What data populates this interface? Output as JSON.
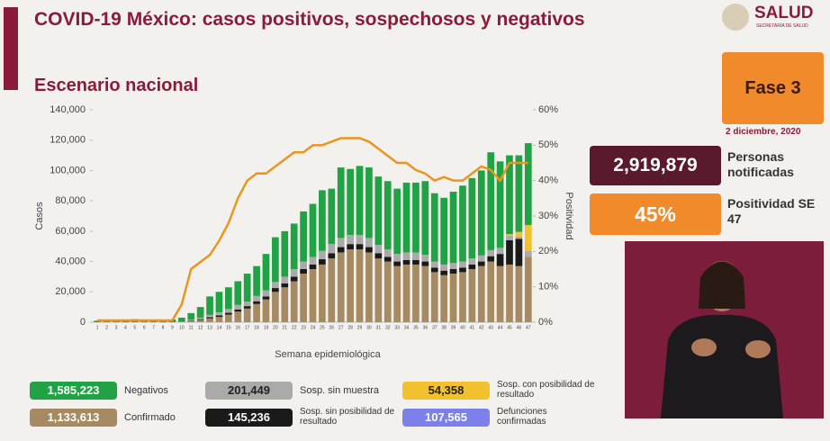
{
  "header": {
    "title": "COVID-19 México: casos positivos, sospechosos y negativos",
    "subtitle": "Escenario nacional",
    "logo": "SALUD",
    "logo_sub": "SECRETARÍA DE SALUD"
  },
  "chart_data": {
    "type": "bar",
    "stacked": true,
    "categories": [
      1,
      2,
      3,
      4,
      5,
      6,
      7,
      8,
      9,
      10,
      11,
      12,
      13,
      14,
      15,
      16,
      17,
      18,
      19,
      20,
      21,
      22,
      23,
      24,
      25,
      26,
      27,
      28,
      29,
      30,
      31,
      32,
      33,
      34,
      35,
      36,
      37,
      38,
      39,
      40,
      41,
      42,
      43,
      44,
      45,
      46,
      47
    ],
    "xlabel": "Semana epidemiológica",
    "ylabel": "Casos",
    "ylim": [
      0,
      140000
    ],
    "yticks": [
      {
        "value": 0,
        "label": "0"
      },
      {
        "value": 20000,
        "label": "20,000"
      },
      {
        "value": 40000,
        "label": "40,000"
      },
      {
        "value": 60000,
        "label": "60,000"
      },
      {
        "value": 80000,
        "label": "80,000"
      },
      {
        "value": 100000,
        "label": "100,000"
      },
      {
        "value": 120000,
        "label": "120,000"
      },
      {
        "value": 140000,
        "label": "140,000"
      }
    ],
    "y2lim": [
      0,
      60
    ],
    "y2ticks": [
      {
        "value": 0,
        "label": "0%"
      },
      {
        "value": 10,
        "label": "10%"
      },
      {
        "value": 20,
        "label": "20%"
      },
      {
        "value": 30,
        "label": "30%"
      },
      {
        "value": 40,
        "label": "40%"
      },
      {
        "value": 50,
        "label": "50%"
      },
      {
        "value": 60,
        "label": "60%"
      }
    ],
    "series": [
      {
        "name": "Confirmado",
        "total": "1,133,613",
        "color": "#a58a62",
        "values": [
          0,
          0,
          0,
          0,
          0,
          0,
          0,
          0,
          0,
          200,
          800,
          1500,
          2500,
          3500,
          5000,
          7000,
          9000,
          12000,
          15000,
          20000,
          23000,
          27000,
          32000,
          35000,
          38000,
          42000,
          46000,
          48000,
          48000,
          46000,
          42000,
          40000,
          37000,
          38000,
          38000,
          37000,
          33000,
          31000,
          32000,
          33000,
          35000,
          37000,
          40000,
          37000,
          38000,
          37000,
          43000
        ]
      },
      {
        "name": "Sosp. sin posibilidad de resultado",
        "total": "145,236",
        "color": "#1a1a1a",
        "values": [
          0,
          0,
          0,
          0,
          0,
          0,
          0,
          0,
          0,
          100,
          300,
          500,
          800,
          1000,
          1200,
          1400,
          1600,
          1800,
          2000,
          2500,
          2500,
          3000,
          3000,
          3000,
          3500,
          3500,
          3500,
          3500,
          3500,
          3500,
          3500,
          3000,
          3000,
          3000,
          3000,
          3000,
          3000,
          3000,
          3000,
          3000,
          3000,
          3000,
          3500,
          8000,
          16000,
          18000,
          0
        ]
      },
      {
        "name": "Sosp. sin muestra",
        "total": "201,449",
        "color": "#aaaaaa",
        "values": [
          0,
          0,
          0,
          0,
          0,
          0,
          0,
          0,
          0,
          200,
          500,
          1000,
          1500,
          2000,
          2500,
          3000,
          3000,
          3500,
          4000,
          4000,
          4500,
          5000,
          5000,
          5000,
          5500,
          6000,
          6000,
          6000,
          6000,
          6000,
          5500,
          5000,
          5000,
          5000,
          5000,
          4500,
          4000,
          4000,
          4000,
          4000,
          4000,
          4000,
          4000,
          4000,
          3000,
          1500,
          4000
        ]
      },
      {
        "name": "Sosp. con posibilidad de resultado",
        "total": "54,358",
        "color": "#f2c12e",
        "values": [
          0,
          0,
          0,
          0,
          0,
          0,
          0,
          0,
          0,
          0,
          0,
          0,
          0,
          0,
          0,
          0,
          0,
          0,
          0,
          0,
          0,
          0,
          0,
          0,
          0,
          0,
          0,
          0,
          0,
          0,
          0,
          0,
          0,
          0,
          0,
          0,
          0,
          0,
          0,
          0,
          0,
          0,
          0,
          0,
          1000,
          3000,
          17000
        ]
      },
      {
        "name": "Negativos",
        "total": "1,585,223",
        "color": "#21a244",
        "values": [
          1000,
          1200,
          1500,
          1800,
          2000,
          1800,
          1500,
          1500,
          1800,
          2500,
          4400,
          7000,
          12200,
          13500,
          14300,
          15600,
          18400,
          19700,
          24000,
          29500,
          30000,
          30000,
          33000,
          35000,
          40000,
          36500,
          46500,
          43500,
          45500,
          46500,
          45000,
          45000,
          43000,
          46000,
          46000,
          48500,
          45000,
          44000,
          47000,
          50000,
          53000,
          56000,
          64500,
          57000,
          52000,
          50500,
          54000
        ]
      },
      {
        "name": "Positividad",
        "type": "line",
        "axis": "y2",
        "color": "#e8961e",
        "values": [
          0.5,
          0.5,
          0.5,
          0.5,
          0.5,
          0.5,
          0.5,
          0.5,
          0.5,
          5,
          15,
          17,
          19,
          23,
          28,
          35,
          40,
          42,
          42,
          44,
          46,
          48,
          48,
          50,
          50,
          51,
          52,
          52,
          52,
          51,
          49,
          47,
          45,
          45,
          43,
          42,
          40,
          41,
          40,
          40,
          42,
          44,
          43,
          40,
          45,
          45,
          45
        ]
      }
    ]
  },
  "side": {
    "phase": "Fase 3",
    "date": "2 diciembre, 2020",
    "notified_value": "2,919,879",
    "notified_label": "Personas notificadas",
    "positivity_value": "45%",
    "positivity_label": "Positividad SE 47"
  },
  "deaths": {
    "value": "107,565",
    "label": "Defunciones confirmadas"
  }
}
